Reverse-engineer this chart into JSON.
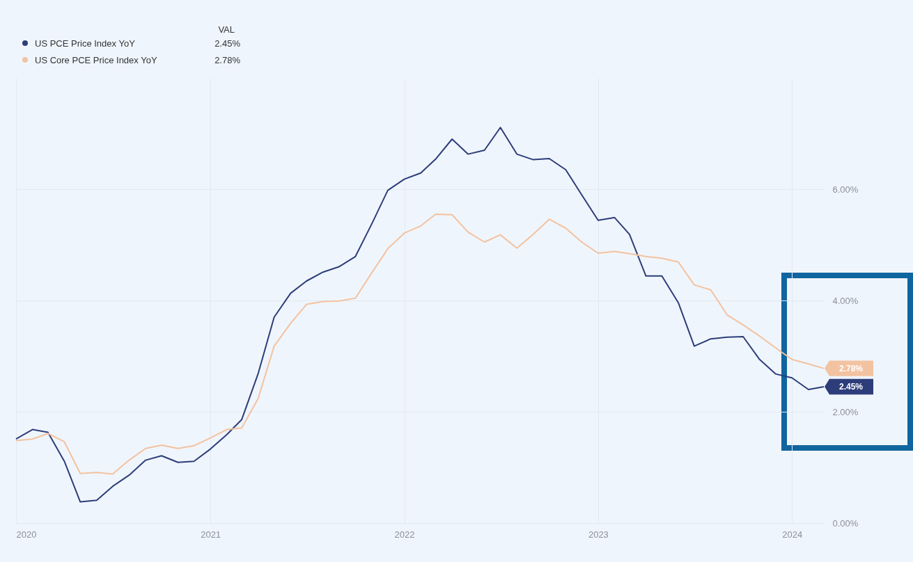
{
  "chart_data": {
    "type": "line",
    "legend": "top left",
    "legend_title": "VAL",
    "grid": true,
    "x": [
      "2020-01",
      "2020-02",
      "2020-03",
      "2020-04",
      "2020-05",
      "2020-06",
      "2020-07",
      "2020-08",
      "2020-09",
      "2020-10",
      "2020-11",
      "2020-12",
      "2021-01",
      "2021-02",
      "2021-03",
      "2021-04",
      "2021-05",
      "2021-06",
      "2021-07",
      "2021-08",
      "2021-09",
      "2021-10",
      "2021-11",
      "2021-12",
      "2022-01",
      "2022-02",
      "2022-03",
      "2022-04",
      "2022-05",
      "2022-06",
      "2022-07",
      "2022-08",
      "2022-09",
      "2022-10",
      "2022-11",
      "2022-12",
      "2023-01",
      "2023-02",
      "2023-03",
      "2023-04",
      "2023-05",
      "2023-06",
      "2023-07",
      "2023-08",
      "2023-09",
      "2023-10",
      "2023-11",
      "2023-12",
      "2024-01",
      "2024-02",
      "2024-03"
    ],
    "xlim": [
      "2020-01",
      "2024-03"
    ],
    "xticks": [
      "2020",
      "2021",
      "2022",
      "2023",
      "2024"
    ],
    "ylim": [
      0,
      8
    ],
    "yticks": [
      {
        "value": 0,
        "label": "0.00%"
      },
      {
        "value": 2,
        "label": "2.00%"
      },
      {
        "value": 4,
        "label": "4.00%"
      },
      {
        "value": 6,
        "label": "6.00%"
      }
    ],
    "series": [
      {
        "name": "US PCE Price Index YoY",
        "color": "#2d3d7a",
        "values": [
          1.51,
          1.68,
          1.63,
          1.11,
          0.38,
          0.41,
          0.66,
          0.86,
          1.13,
          1.21,
          1.09,
          1.11,
          1.33,
          1.59,
          1.86,
          2.69,
          3.7,
          4.13,
          4.35,
          4.51,
          4.61,
          4.79,
          5.38,
          5.98,
          6.18,
          6.29,
          6.54,
          6.9,
          6.63,
          6.7,
          7.11,
          6.63,
          6.53,
          6.55,
          6.35,
          5.9,
          5.44,
          5.49,
          5.19,
          4.44,
          4.44,
          3.96,
          3.18,
          3.31,
          3.34,
          3.35,
          2.94,
          2.68,
          2.61,
          2.4,
          2.45
        ],
        "value_labels": [
          null,
          null,
          null,
          null,
          null,
          null,
          null,
          null,
          null,
          null,
          null,
          null,
          null,
          null,
          null,
          null,
          null,
          null,
          null,
          null,
          null,
          null,
          null,
          null,
          null,
          null,
          null,
          null,
          null,
          null,
          null,
          null,
          null,
          null,
          null,
          null,
          null,
          null,
          null,
          null,
          null,
          null,
          null,
          null,
          null,
          null,
          null,
          null,
          null,
          null,
          "2.45%"
        ]
      },
      {
        "name": "US Core PCE Price Index YoY",
        "color": "#f3c2a0",
        "values": [
          1.48,
          1.51,
          1.61,
          1.46,
          0.89,
          0.91,
          0.88,
          1.13,
          1.34,
          1.4,
          1.34,
          1.39,
          1.53,
          1.68,
          1.71,
          2.24,
          3.18,
          3.59,
          3.93,
          3.98,
          3.99,
          4.04,
          4.5,
          4.93,
          5.21,
          5.34,
          5.55,
          5.54,
          5.23,
          5.05,
          5.18,
          4.94,
          5.19,
          5.46,
          5.3,
          5.05,
          4.85,
          4.88,
          4.84,
          4.79,
          4.76,
          4.69,
          4.28,
          4.19,
          3.74,
          3.56,
          3.36,
          3.15,
          2.94,
          2.86,
          2.78
        ],
        "value_labels": [
          null,
          null,
          null,
          null,
          null,
          null,
          null,
          null,
          null,
          null,
          null,
          null,
          null,
          null,
          null,
          null,
          null,
          null,
          null,
          null,
          null,
          null,
          null,
          null,
          null,
          null,
          null,
          null,
          null,
          null,
          null,
          null,
          null,
          null,
          null,
          null,
          null,
          null,
          null,
          null,
          null,
          null,
          null,
          null,
          null,
          null,
          null,
          null,
          null,
          null,
          "2.78%"
        ]
      }
    ]
  }
}
